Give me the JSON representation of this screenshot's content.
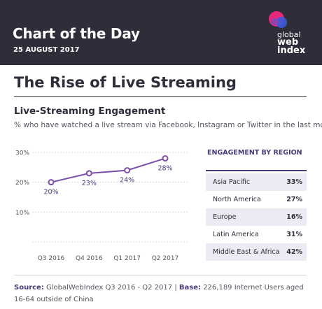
{
  "header": {
    "title": "Chart of the Day",
    "date": "25 AUGUST 2017",
    "logo_lines": [
      "global",
      "web",
      "index"
    ],
    "background": "#2e2e3a"
  },
  "page_title": "The Rise of Live Streaming",
  "section": {
    "title": "Live-Streaming Engagement",
    "subtitle": "% who have watched a live stream via Facebook, Instagram or Twitter in the last month"
  },
  "chart_data": {
    "type": "line",
    "categories": [
      "Q3 2016",
      "Q4 2016",
      "Q1 2017",
      "Q2 2017"
    ],
    "values": [
      20,
      23,
      24,
      28
    ],
    "value_labels": [
      "20%",
      "23%",
      "24%",
      "28%"
    ],
    "ylim": [
      0,
      30
    ],
    "yticks": [
      10,
      20,
      30
    ],
    "ytick_labels": [
      "10%",
      "20%",
      "30%"
    ],
    "grid": true,
    "line_color": "#7b4fa6"
  },
  "regions": {
    "header": "ENGAGEMENT BY REGION",
    "rows": [
      {
        "name": "Asia Pacific",
        "value": "33%"
      },
      {
        "name": "North America",
        "value": "27%"
      },
      {
        "name": "Europe",
        "value": "16%"
      },
      {
        "name": "Latin America",
        "value": "31%"
      },
      {
        "name": "Middle East & Africa",
        "value": "42%"
      }
    ]
  },
  "footer": {
    "source_label": "Source:",
    "source_text": "GlobalWebIndex Q3 2016 - Q2 2017",
    "separator": "|",
    "base_label": "Base:",
    "base_text": "226,189 Internet Users aged 16-64 outside of China"
  }
}
